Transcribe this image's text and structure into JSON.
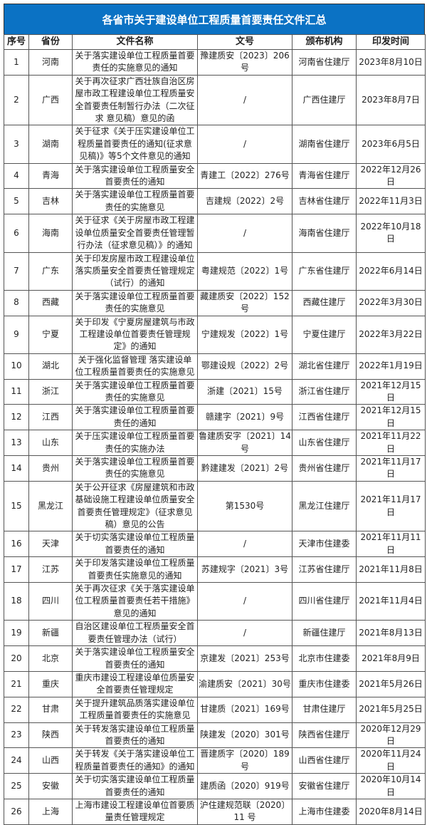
{
  "title": "各省市关于建设单位工程质量首要责任文件汇总",
  "headers": [
    "序号",
    "省份",
    "文件名称",
    "文号",
    "颁布机构",
    "印发时间"
  ],
  "rows": [
    [
      "1",
      "河南",
      "关于落实建设单位工程质量首要责任的实施意见的通知",
      "豫建质安〔2023〕206号",
      "河南省住建厅",
      "2023年8月10日"
    ],
    [
      "2",
      "广西",
      "关于再次征求广西壮族自治区房屋市政工程建设单位工程质量安全首要责任制暂行办法（二次征求 意见稿）意见的函",
      "/",
      "广西住建厅",
      "2023年8月7日"
    ],
    [
      "3",
      "湖南",
      "关于征求《关于压实建设单位工程质量首要责任的通知(征求意见稿)》等5个文件意见的通知",
      "/",
      "湖南省住建厅",
      "2023年6月5日"
    ],
    [
      "4",
      "青海",
      "关于落实建设单位工程质量安全首要责任的通知",
      "青建工〔2022〕276号",
      "青海省住建厅",
      "2022年12月26日"
    ],
    [
      "5",
      "吉林",
      "关于落实建设单位工程质量首要责任的实施意见",
      "吉建规〔2022〕2号",
      "吉林省住建厅",
      "2022年11月3日"
    ],
    [
      "6",
      "海南",
      "关于征求《关于房屋市政工程建设单位质量安全首要责任管理暂行办法（征求意见稿）》的通知",
      "/",
      "海南省住建厅",
      "2022年10月18日"
    ],
    [
      "7",
      "广东",
      "关于印发房屋市政工程建设单位落实质量安全首要责任管理规定（试行）的通知",
      "粤建规范〔2022〕1号",
      "广东省住建厅",
      "2022年6月14日"
    ],
    [
      "8",
      "西藏",
      "关于落实建设单位工程质量首要责任的实施意见",
      "藏建质安〔2022〕152号",
      "西藏住建厅",
      "2022年3月30日"
    ],
    [
      "9",
      "宁夏",
      "关于印发《宁夏房屋建筑与市政工程建设单位首要责任管理规定》的通知",
      "宁建规发〔2022〕1号",
      "宁夏住建厅",
      "2022年3月22日"
    ],
    [
      "10",
      "湖北",
      "关于强化监督管理 落实建设单位工程质量首要责任的实施意见",
      "鄂建设规〔2022〕2号",
      "湖北省住建厅",
      "2022年1月19日"
    ],
    [
      "11",
      "浙江",
      "关于落实建设单位工程质量首要责任的实施意见",
      "浙建〔2021〕15号",
      "浙江省住建厅",
      "2021年12月15日"
    ],
    [
      "12",
      "江西",
      "关于落实建设单位工程质量首要责任的通知",
      "赣建字〔2021〕9号",
      "江西省住建厅",
      "2021年12月15日"
    ],
    [
      "13",
      "山东",
      "关于压实建设单位工程质量首要责任的实施办法",
      "鲁建质安字〔2021〕14号",
      "山东省住建厅",
      "2021年11月22日"
    ],
    [
      "14",
      "贵州",
      "关于落实建设单位工程质量首要责任的实施意见",
      "黔建建发〔2021〕2号",
      "贵州省住建厅",
      "2021年11月17日"
    ],
    [
      "15",
      "黑龙江",
      "关于公开征求《房屋建筑和市政基础设施工程建设单位质量安全首要责任管理规定》（征求意见稿）意见的公告",
      "第1530号",
      "黑龙江住建厅",
      "2021年11月17日"
    ],
    [
      "16",
      "天津",
      "关于切实落实建设单位工程质量首要责任的通知",
      "/",
      "天津市住建委",
      "2021年11月11日"
    ],
    [
      "17",
      "江苏",
      "关于印发落实建设单位工程质量首要责任实施意见的通知",
      "苏建规字〔2021〕3号",
      "江苏省住建厅",
      "2021年11月8日"
    ],
    [
      "18",
      "四川",
      "关于再次征求《关于落实建设单位工程质量首要责任若干措施》意见的通知",
      "/",
      "四川省住建厅",
      "2021年11月4日"
    ],
    [
      "19",
      "新疆",
      "自治区建设单位工程质量安全首要责任管理办法（试行）",
      "/",
      "新疆住建厅",
      "2021年8月13日"
    ],
    [
      "20",
      "北京",
      "关于落实建设单位工程质量安全首要责任的通知",
      "京建发〔2021〕253号",
      "北京市住建委",
      "2021年8月9日"
    ],
    [
      "21",
      "重庆",
      "重庆市建设工程建设单位质量安全首要责任管理规定",
      "渝建质安〔2021〕30号",
      "重庆市住建委",
      "2021年5月26日"
    ],
    [
      "22",
      "甘肃",
      "关于提升建筑品质落实建设单位工程质量首要责任的实施意见",
      "甘建质〔2021〕169号",
      "甘肃住建厅",
      "2021年5月25日"
    ],
    [
      "23",
      "陕西",
      "关于转发落实建设单位工程质量首要责任的通知",
      "陕建发〔2020〕301号",
      "陕西省住建厅",
      "2020年12月29日"
    ],
    [
      "24",
      "山西",
      "关于转发《关于落实建设单位工程质量首要责任的通知》的通知",
      "晋建质字〔2020〕189号",
      "山西省住建厅",
      "2020年11月24日"
    ],
    [
      "25",
      "安徽",
      "关于切实落实建设单位工程质量首要责任的通知",
      "建质函〔2020〕919号",
      "安徽省住建厅",
      "2020年10月14日"
    ],
    [
      "26",
      "上海",
      "上海市建设工程建设单位首要质量责任管理规定",
      "沪住建规范联〔2020〕11 号",
      "上海市住建委",
      "2020年8月14日"
    ]
  ],
  "colors": {
    "title_bg": "#0b72c4",
    "title_text": "#ffffff"
  }
}
